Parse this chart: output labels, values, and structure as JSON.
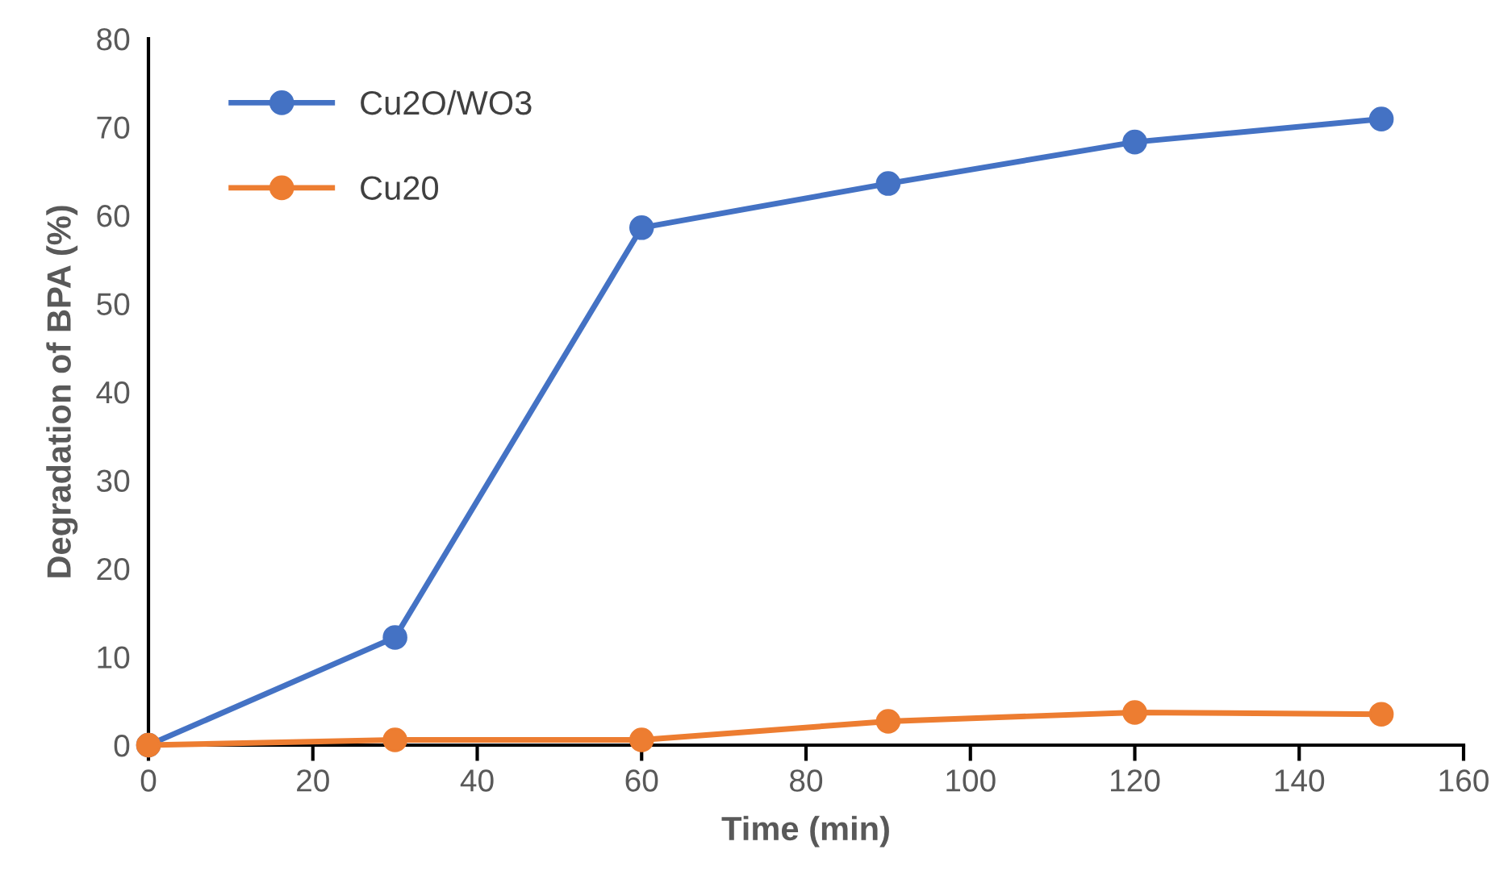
{
  "chart_data": {
    "type": "line",
    "xlabel": "Time (min)",
    "ylabel": "Degradation of BPA (%)",
    "x": [
      0,
      30,
      60,
      90,
      120,
      150
    ],
    "series": [
      {
        "name": "Cu2O/WO3",
        "color": "#4472c4",
        "values": [
          0,
          12.2,
          58.6,
          63.6,
          68.3,
          70.9
        ]
      },
      {
        "name": "Cu20",
        "color": "#ed7d31",
        "values": [
          0,
          0.6,
          0.6,
          2.7,
          3.7,
          3.5
        ]
      }
    ],
    "xlim": [
      0,
      160
    ],
    "xticks": [
      0,
      20,
      40,
      60,
      80,
      100,
      120,
      140,
      160
    ],
    "ylim": [
      0,
      80
    ],
    "yticks": [
      0,
      10,
      20,
      30,
      40,
      50,
      60,
      70,
      80
    ],
    "grid": false,
    "legend": "top left",
    "marker": "circle",
    "line_style": "solid"
  }
}
